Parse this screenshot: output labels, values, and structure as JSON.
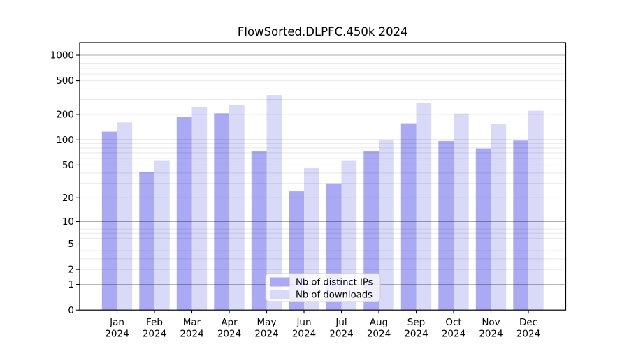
{
  "chart_data": {
    "type": "bar",
    "title": "FlowSorted.DLPFC.450k 2024",
    "yscale": "log1p",
    "ylim": [
      0,
      1380
    ],
    "y_ticks": [
      1000,
      500,
      200,
      100,
      50,
      20,
      10,
      5,
      2,
      1,
      0
    ],
    "grid": "horizontal, major and minor log lines",
    "legend_position": "lower center",
    "categories": [
      "Jan",
      "Feb",
      "Mar",
      "Apr",
      "May",
      "Jun",
      "Jul",
      "Aug",
      "Sep",
      "Oct",
      "Nov",
      "Dec"
    ],
    "year": "2024",
    "series": [
      {
        "name": "Nb of distinct IPs",
        "color": "#a9a9f4",
        "values": [
          125,
          41,
          185,
          206,
          73,
          24,
          30,
          73,
          157,
          97,
          79,
          98
        ]
      },
      {
        "name": "Nb of downloads",
        "color": "#d9d9f8",
        "values": [
          161,
          57,
          242,
          260,
          339,
          46,
          57,
          100,
          275,
          205,
          154,
          221
        ]
      }
    ]
  }
}
